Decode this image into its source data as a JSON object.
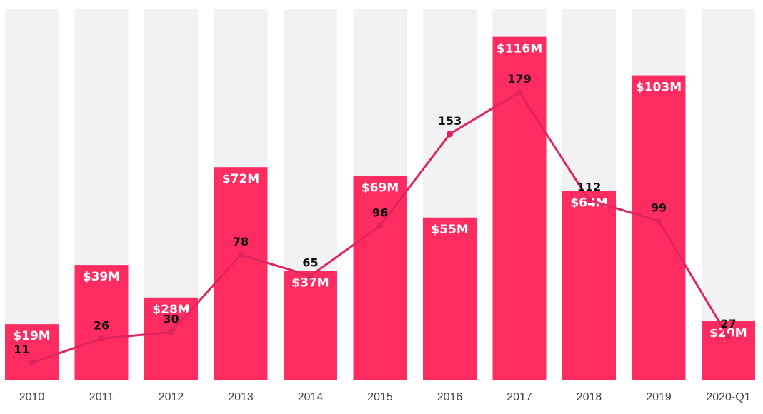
{
  "chart_data": {
    "type": "bar",
    "categories": [
      "2010",
      "2011",
      "2012",
      "2013",
      "2014",
      "2015",
      "2016",
      "2017",
      "2018",
      "2019",
      "2020-Q1"
    ],
    "series": [
      {
        "type": "bar",
        "values": [
          19,
          39,
          28,
          72,
          37,
          69,
          55,
          116,
          64,
          103,
          20
        ],
        "labels": [
          "$19M",
          "$39M",
          "$28M",
          "$72M",
          "$37M",
          "$69M",
          "$55M",
          "$116M",
          "$64M",
          "$103M",
          "$20M"
        ],
        "color": "#fe2c61"
      },
      {
        "type": "line",
        "values": [
          11,
          26,
          30,
          78,
          65,
          96,
          153,
          179,
          112,
          99,
          27
        ],
        "color": "#e0245e"
      }
    ],
    "title": "",
    "xlabel": "",
    "ylabel": "",
    "bar_ylim": [
      0,
      120
    ],
    "line_ylim": [
      0,
      215
    ],
    "background_track_color": "#f2f2f4",
    "grid": false,
    "legend": "none"
  }
}
